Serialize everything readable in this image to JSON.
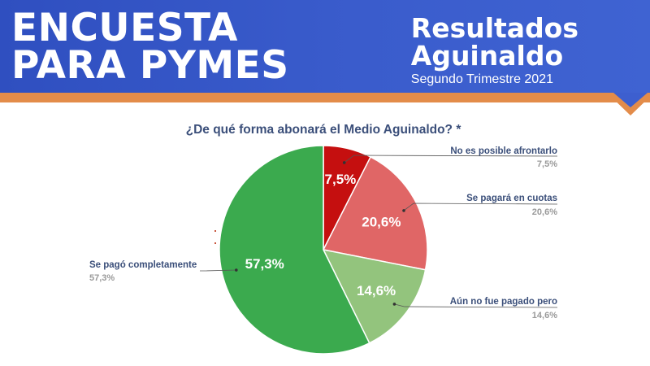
{
  "header": {
    "title_line1": "ENCUESTA",
    "title_line2": "PARA PYMES",
    "results_line1": "Resultados",
    "results_line2": "Aguinaldo",
    "period": "Segundo Trimestre 2021"
  },
  "colors": {
    "header_bg": "#3a5ccc",
    "accent_stripe": "#e38c4a",
    "title_text": "#3b4f7a"
  },
  "chart_data": {
    "type": "pie",
    "title": "¿De qué forma abonará el Medio Aguinaldo? *",
    "start_angle_deg": 0,
    "direction": "clockwise",
    "slices": [
      {
        "label": "No es posible afrontarlo",
        "value": 7.5,
        "display": "7,5%",
        "color": "#c50f0f"
      },
      {
        "label": "Se pagará en cuotas",
        "value": 20.6,
        "display": "20,6%",
        "color": "#e06666"
      },
      {
        "label": "Aún no fue pagado pero",
        "value": 14.6,
        "display": "14,6%",
        "color": "#93c47d"
      },
      {
        "label": "Se pagó completamente",
        "value": 57.3,
        "display": "57,3%",
        "color": "#3baa4e"
      }
    ],
    "legend": "callouts"
  }
}
